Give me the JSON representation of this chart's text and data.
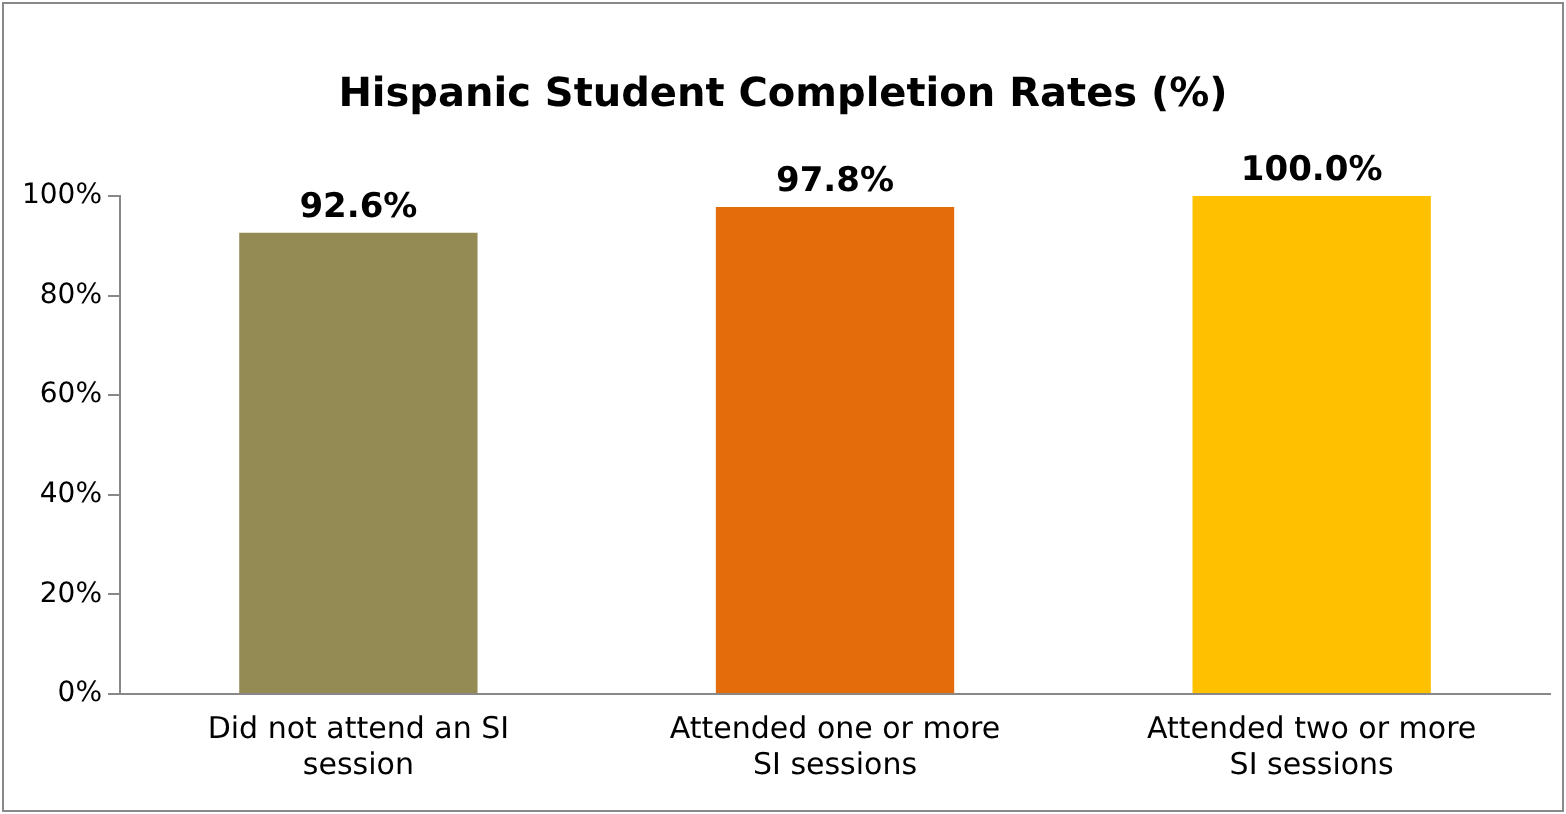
{
  "chart_data": {
    "type": "bar",
    "title": "Hispanic Student Completion Rates (%)",
    "categories": [
      "Did not attend an SI session",
      "Attended one or more SI sessions",
      "Attended two or more SI sessions"
    ],
    "values": [
      92.6,
      97.8,
      100.0
    ],
    "colors": [
      "#948a54",
      "#e46c0a",
      "#ffc000"
    ],
    "value_labels": [
      "92.6%",
      "97.8%",
      "100.0%"
    ],
    "ylim": [
      0,
      100
    ],
    "yticks": [
      {
        "value": 0,
        "label": "0%"
      },
      {
        "value": 20,
        "label": "20%"
      },
      {
        "value": 40,
        "label": "40%"
      },
      {
        "value": 60,
        "label": "60%"
      },
      {
        "value": 80,
        "label": "80%"
      },
      {
        "value": 100,
        "label": "100%"
      }
    ],
    "grid": false,
    "legend": false
  }
}
